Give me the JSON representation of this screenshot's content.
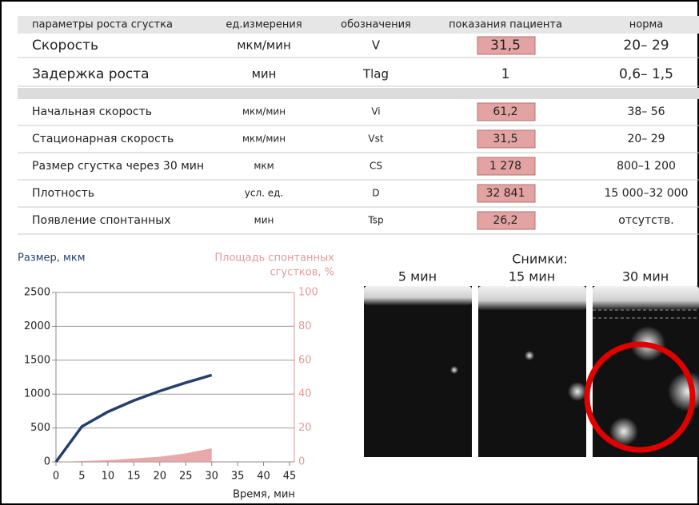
{
  "table": {
    "header": [
      "параметры роста сгустка",
      "ед.измерения",
      "обозначения",
      "показания пациента",
      "норма"
    ],
    "main_rows": [
      {
        "cells": [
          "Скорость",
          "мкм/мин",
          "V",
          "31,5",
          "20– 29"
        ],
        "flagged": true
      },
      {
        "cells": [
          "Задержка роста",
          "мин",
          "Tlag",
          "1",
          "0,6– 1,5"
        ],
        "flagged": false
      }
    ],
    "rows": [
      {
        "cells": [
          "Начальная скорость",
          "мкм/мин",
          "Vi",
          "61,2",
          "38– 56"
        ],
        "flagged": true
      },
      {
        "cells": [
          "Стационарная скорость",
          "мкм/мин",
          "Vst",
          "31,5",
          "20– 29"
        ],
        "flagged": true
      },
      {
        "cells": [
          "Размер сгустка через 30 мин",
          "мкм",
          "CS",
          "1 278",
          "800–1 200"
        ],
        "flagged": true
      },
      {
        "cells": [
          "Плотность",
          "усл. ед.",
          "D",
          "32 841",
          "15 000–32 000"
        ],
        "flagged": true
      },
      {
        "cells": [
          "Появление спонтанных",
          "мин",
          "Tsp",
          "26,2",
          "отсутств."
        ],
        "flagged": true
      }
    ]
  },
  "chart_data": {
    "type": "line",
    "ylabel": "Размер, мкм",
    "y2label_lines": [
      "Площадь спонтанных",
      "сгустков, %"
    ],
    "xlabel": "Время, мин",
    "x": [
      0,
      5,
      10,
      15,
      20,
      25,
      30
    ],
    "xlim": [
      0,
      45
    ],
    "xticks": [
      0,
      5,
      10,
      15,
      20,
      25,
      30,
      35,
      40,
      45
    ],
    "ylim": [
      0,
      2500
    ],
    "yticks": [
      0,
      500,
      1000,
      1500,
      2000,
      2500
    ],
    "y2lim": [
      0,
      100
    ],
    "y2ticks": [
      0,
      20,
      40,
      60,
      80,
      100
    ],
    "grid": true,
    "series": [
      {
        "type": "line",
        "color": "#253f6b",
        "values": [
          0,
          522,
          739,
          905,
          1045,
          1168,
          1280
        ]
      },
      {
        "type": "area",
        "axis": "y2",
        "color": "#e39a9a",
        "values": [
          0,
          0.5,
          1,
          2,
          3,
          5,
          8
        ]
      }
    ]
  },
  "images": {
    "title": "Снимки:",
    "labels": [
      "5 мин",
      "15 мин",
      "30 мин"
    ]
  }
}
